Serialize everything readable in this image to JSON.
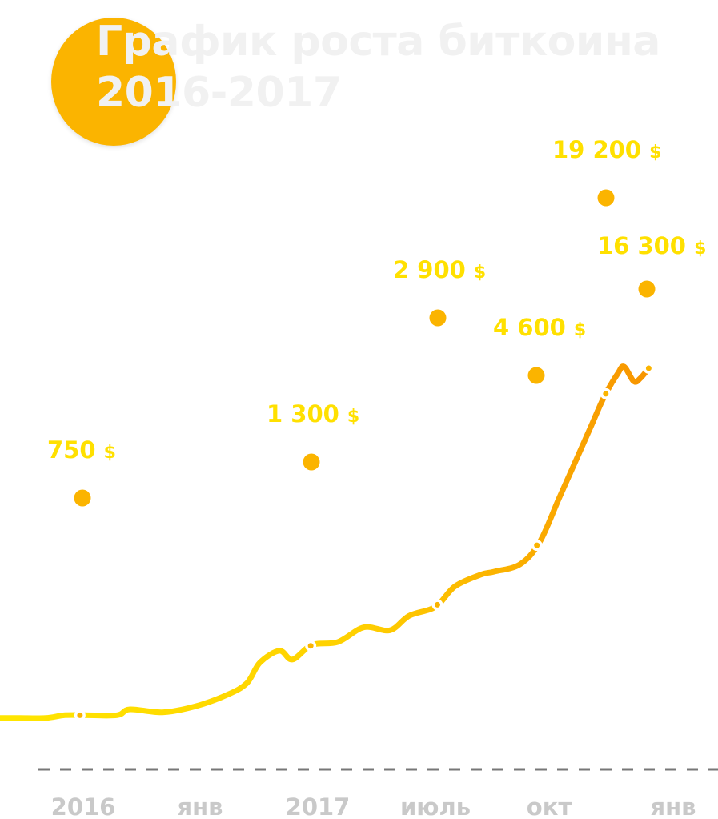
{
  "header": {
    "title_line1": "График роста биткоина",
    "title_line2": "2016-2017"
  },
  "colors": {
    "circle": "#fbb400",
    "title_text": "#f1f1f1",
    "line_start": "#ffe600",
    "line_end": "#f79400",
    "marker": "#fbb400",
    "price_label": "#ffe000",
    "axis_dash": "#777777",
    "tick_label": "#c9c9c9"
  },
  "chart_data": {
    "type": "line",
    "title": "График роста биткоина 2016-2017",
    "x_ticks": [
      "2016",
      "янв",
      "2017",
      "июль",
      "окт",
      "янв"
    ],
    "y_unit": "$",
    "series": [
      {
        "values": [
          [
            0.0,
            1
          ],
          [
            0.03,
            1
          ],
          [
            0.07,
            1
          ],
          [
            0.1,
            20
          ],
          [
            0.13,
            20
          ],
          [
            0.18,
            20
          ],
          [
            0.2,
            60
          ],
          [
            0.25,
            40
          ],
          [
            0.3,
            80
          ],
          [
            0.35,
            160
          ],
          [
            0.38,
            240
          ],
          [
            0.4,
            380
          ],
          [
            0.43,
            460
          ],
          [
            0.45,
            400
          ],
          [
            0.48,
            500
          ],
          [
            0.52,
            520
          ],
          [
            0.56,
            620
          ],
          [
            0.6,
            600
          ],
          [
            0.63,
            700
          ],
          [
            0.67,
            760
          ],
          [
            0.7,
            900
          ],
          [
            0.74,
            980
          ],
          [
            0.76,
            1000
          ],
          [
            0.8,
            1050
          ],
          [
            0.83,
            1200
          ],
          [
            0.86,
            1500
          ],
          [
            0.89,
            1800
          ],
          [
            0.91,
            2000
          ],
          [
            0.93,
            2200
          ],
          [
            0.95,
            2350
          ],
          [
            0.96,
            2400
          ],
          [
            0.975,
            2300
          ],
          [
            0.985,
            2320
          ],
          [
            1.0,
            2400
          ]
        ]
      }
    ],
    "points": [
      {
        "label": "750",
        "x": 0.113
      },
      {
        "label": "1 300",
        "x": 0.434
      },
      {
        "label": "2 900",
        "x": 0.61
      },
      {
        "label": "4 600",
        "x": 0.747
      },
      {
        "label": "19 200",
        "x": 0.844
      },
      {
        "label": "16 300",
        "x": 0.901
      }
    ],
    "currency_symbol": "$",
    "grid": false
  }
}
